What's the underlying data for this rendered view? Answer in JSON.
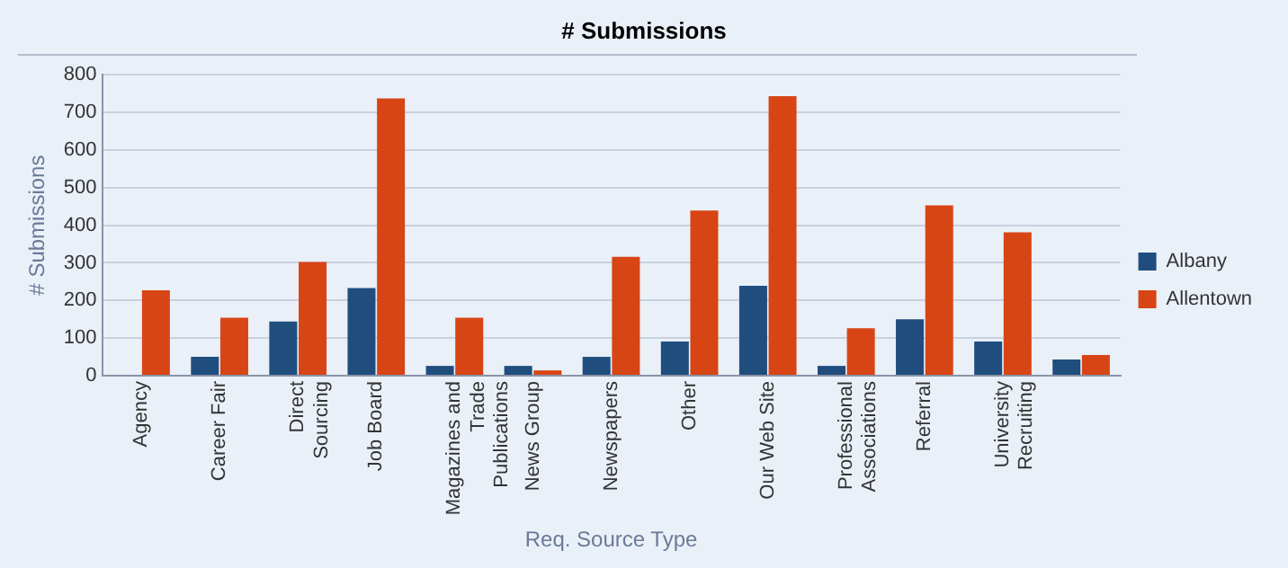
{
  "chart_data": {
    "type": "bar",
    "title": "# Submissions",
    "xlabel": "Req. Source Type",
    "ylabel": "# Submissions",
    "categories": [
      "Agency",
      "Career Fair",
      "Direct Sourcing",
      "Job Board",
      "Magazines and Trade Publications",
      "News Group",
      "Newspapers",
      "Other",
      "Our Web Site",
      "Professional Associations",
      "Referral",
      "University Recruiting",
      null
    ],
    "series": [
      {
        "name": "Albany",
        "color": "#1f4e7e",
        "values": [
          0,
          50,
          144,
          233,
          26,
          26,
          50,
          91,
          239,
          26,
          150,
          91,
          43
        ]
      },
      {
        "name": "Allentown",
        "color": "#d84515",
        "values": [
          227,
          154,
          302,
          737,
          154,
          14,
          316,
          439,
          743,
          126,
          453,
          381,
          55
        ]
      }
    ],
    "ylim": [
      0,
      800
    ],
    "yticks": [
      0,
      100,
      200,
      300,
      400,
      500,
      600,
      700,
      800
    ],
    "grid": "y",
    "legend": "right"
  }
}
